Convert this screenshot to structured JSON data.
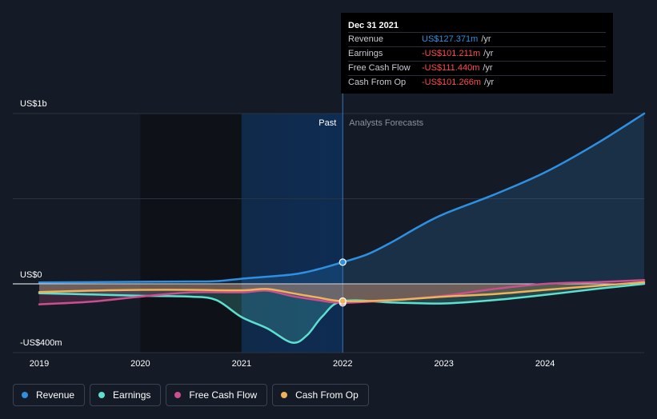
{
  "chart_data": {
    "type": "line",
    "y_axis": {
      "labels": [
        "US$1b",
        "US$0",
        "-US$400m"
      ],
      "ylim": [
        -400,
        1000
      ],
      "unit": "US$m"
    },
    "x_axis": {
      "ticks": [
        "2019",
        "2020",
        "2021",
        "2022",
        "2023",
        "2024"
      ],
      "xlim": [
        2019.0,
        2024.98
      ]
    },
    "regions": {
      "past_label": "Past",
      "forecast_label": "Analysts Forecasts",
      "divider_x": 2022.0
    },
    "series": [
      {
        "name": "Revenue",
        "color": "#2f8fe0",
        "points": [
          [
            2019.0,
            8
          ],
          [
            2019.5,
            10
          ],
          [
            2020.0,
            12
          ],
          [
            2020.5,
            14
          ],
          [
            2020.75,
            16
          ],
          [
            2021.0,
            30
          ],
          [
            2021.5,
            55
          ],
          [
            2021.75,
            85
          ],
          [
            2022.0,
            127.371
          ],
          [
            2022.25,
            175
          ],
          [
            2022.5,
            250
          ],
          [
            2022.75,
            335
          ],
          [
            2023.0,
            410
          ],
          [
            2023.5,
            525
          ],
          [
            2024.0,
            655
          ],
          [
            2024.5,
            820
          ],
          [
            2024.98,
            1000
          ]
        ]
      },
      {
        "name": "Earnings",
        "color": "#5de0d0",
        "points": [
          [
            2019.0,
            -55
          ],
          [
            2019.5,
            -62
          ],
          [
            2020.0,
            -70
          ],
          [
            2020.5,
            -75
          ],
          [
            2020.75,
            -95
          ],
          [
            2021.0,
            -195
          ],
          [
            2021.25,
            -260
          ],
          [
            2021.5,
            -345
          ],
          [
            2021.65,
            -300
          ],
          [
            2021.8,
            -190
          ],
          [
            2022.0,
            -101.211
          ],
          [
            2022.5,
            -110
          ],
          [
            2023.0,
            -115
          ],
          [
            2023.5,
            -95
          ],
          [
            2024.0,
            -65
          ],
          [
            2024.5,
            -30
          ],
          [
            2024.98,
            0
          ]
        ]
      },
      {
        "name": "Free Cash Flow",
        "color": "#c94f8f",
        "points": [
          [
            2019.0,
            -120
          ],
          [
            2019.5,
            -105
          ],
          [
            2020.0,
            -75
          ],
          [
            2020.5,
            -50
          ],
          [
            2021.0,
            -50
          ],
          [
            2021.25,
            -40
          ],
          [
            2021.5,
            -72
          ],
          [
            2021.75,
            -95
          ],
          [
            2022.0,
            -111.44
          ],
          [
            2022.5,
            -95
          ],
          [
            2023.0,
            -70
          ],
          [
            2023.5,
            -30
          ],
          [
            2024.0,
            0
          ],
          [
            2024.5,
            10
          ],
          [
            2024.98,
            22
          ]
        ]
      },
      {
        "name": "Cash From Op",
        "color": "#f0b35a",
        "points": [
          [
            2019.0,
            -48
          ],
          [
            2019.5,
            -40
          ],
          [
            2020.0,
            -35
          ],
          [
            2020.5,
            -35
          ],
          [
            2021.0,
            -38
          ],
          [
            2021.25,
            -30
          ],
          [
            2021.5,
            -55
          ],
          [
            2021.75,
            -80
          ],
          [
            2022.0,
            -101.266
          ],
          [
            2022.5,
            -95
          ],
          [
            2023.0,
            -75
          ],
          [
            2023.5,
            -60
          ],
          [
            2024.0,
            -35
          ],
          [
            2024.5,
            -12
          ],
          [
            2024.98,
            10
          ]
        ]
      }
    ],
    "tooltip": {
      "date": "Dec 31 2021",
      "rows": [
        {
          "label": "Revenue",
          "value": "US$127.371m",
          "unit": "/yr",
          "color": "#2f8fe0"
        },
        {
          "label": "Earnings",
          "value": "-US$101.211m",
          "unit": "/yr",
          "color": "#ff4d4d"
        },
        {
          "label": "Free Cash Flow",
          "value": "-US$111.440m",
          "unit": "/yr",
          "color": "#ff4d4d"
        },
        {
          "label": "Cash From Op",
          "value": "-US$101.266m",
          "unit": "/yr",
          "color": "#ff4d4d"
        }
      ]
    },
    "legend": [
      {
        "label": "Revenue",
        "color": "#2f8fe0"
      },
      {
        "label": "Earnings",
        "color": "#5de0d0"
      },
      {
        "label": "Free Cash Flow",
        "color": "#c94f8f"
      },
      {
        "label": "Cash From Op",
        "color": "#f0b35a"
      }
    ]
  }
}
